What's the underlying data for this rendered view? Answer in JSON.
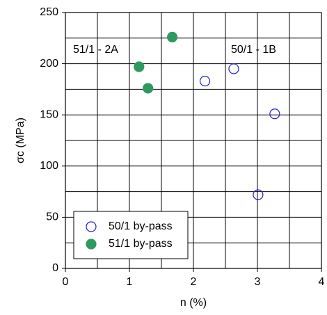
{
  "chart_data": {
    "type": "scatter",
    "xlabel": "n (%)",
    "ylabel": "σc (MPa)",
    "xlim": [
      0,
      4
    ],
    "ylim": [
      0,
      250
    ],
    "xticks": [
      0,
      1,
      2,
      3,
      4
    ],
    "yticks": [
      0,
      50,
      100,
      150,
      200,
      250
    ],
    "xgridlines": [
      0.5,
      1,
      1.5,
      2,
      2.5,
      3,
      3.5
    ],
    "ygridlines": [
      25,
      50,
      75,
      100,
      125,
      150,
      175,
      200,
      225
    ],
    "grid": true,
    "legend": "lower left",
    "annotations": [
      {
        "text": "51/1 - 2A"
      },
      {
        "text": "50/1 - 1B"
      }
    ],
    "series": [
      {
        "name": "50/1 by-pass",
        "color": "#1f1fd0",
        "marker": "open",
        "x": [
          2.18,
          2.63,
          3.27,
          3.01
        ],
        "values": [
          183,
          195,
          151,
          72
        ]
      },
      {
        "name": "51/1 by-pass",
        "color": "#2e9a5e",
        "marker": "filled",
        "x": [
          1.15,
          1.29,
          1.67
        ],
        "values": [
          197,
          176,
          226
        ]
      }
    ]
  }
}
